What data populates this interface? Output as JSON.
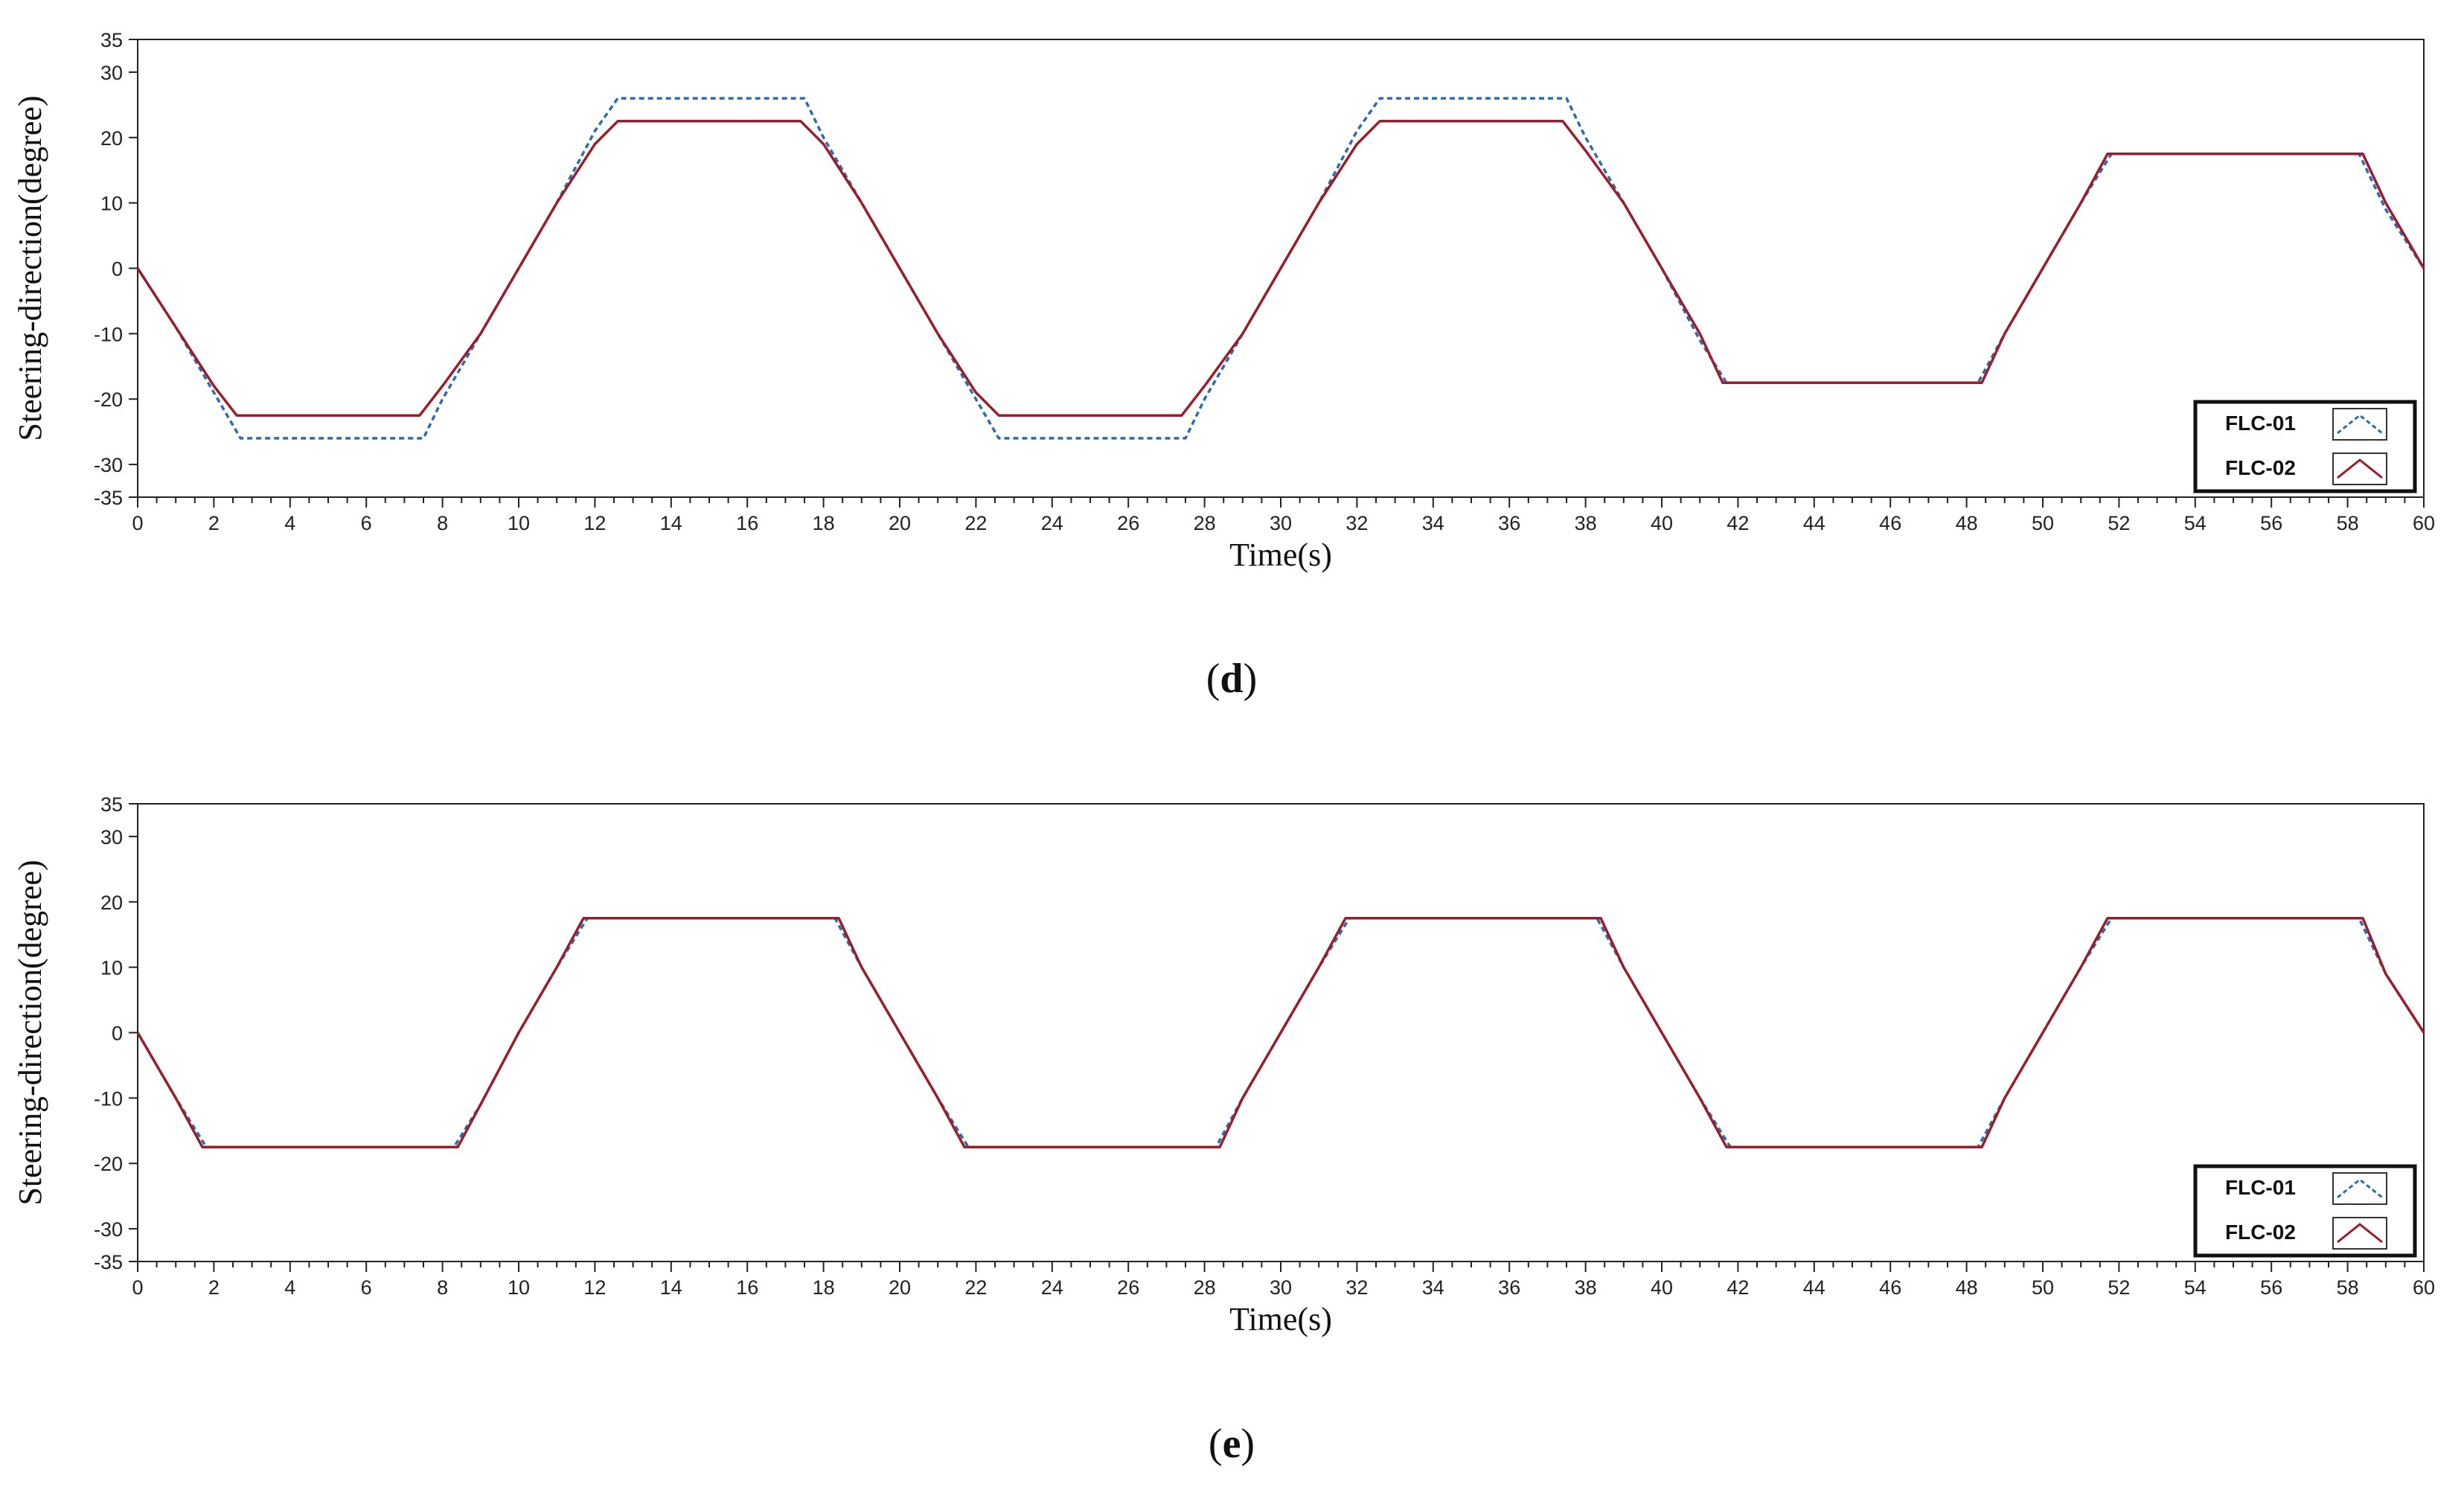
{
  "colors": {
    "flc01": "#2b6cb0",
    "flc02": "#9b1c2a",
    "axis": "#222222"
  },
  "chart_data": [
    {
      "type": "line",
      "panel_label": "d",
      "xlabel": "Time(s)",
      "ylabel": "Steering-direction(degree)",
      "xlim": [
        0,
        60
      ],
      "ylim": [
        -35,
        35
      ],
      "xticks": [
        0,
        2,
        4,
        6,
        8,
        10,
        12,
        14,
        16,
        18,
        20,
        22,
        24,
        26,
        28,
        30,
        32,
        34,
        36,
        38,
        40,
        42,
        44,
        46,
        48,
        50,
        52,
        54,
        56,
        58,
        60
      ],
      "yticks": [
        -35,
        -30,
        -20,
        -10,
        0,
        10,
        20,
        30,
        35
      ],
      "legend_position": "bottom-right",
      "series": [
        {
          "name": "FLC-01",
          "style": "dashed",
          "x": [
            0,
            1,
            2,
            2.7,
            7.5,
            8,
            9,
            10,
            11,
            12,
            12.6,
            17.5,
            18,
            19,
            20,
            21,
            22,
            22.6,
            27.5,
            28,
            29,
            30,
            31,
            32,
            32.6,
            37.5,
            38,
            39,
            40,
            41,
            41.7,
            48.3,
            49,
            50,
            51,
            51.8,
            58.3,
            59,
            60
          ],
          "y": [
            0,
            -9,
            -19,
            -26,
            -26,
            -20,
            -10,
            0,
            10,
            21,
            26,
            26,
            20,
            10,
            0,
            -10,
            -20,
            -26,
            -26,
            -20,
            -10,
            0,
            10,
            21,
            26,
            26,
            20,
            10,
            0,
            -11,
            -17.5,
            -17.5,
            -10,
            0,
            10,
            17.5,
            17.5,
            9,
            0
          ]
        },
        {
          "name": "FLC-02",
          "style": "solid",
          "x": [
            0,
            1,
            2,
            2.6,
            7.4,
            8,
            9,
            10,
            11,
            12,
            12.6,
            17.4,
            18,
            19,
            20,
            21,
            22,
            22.6,
            27.4,
            28,
            29,
            30,
            31,
            32,
            32.6,
            37.4,
            38,
            39,
            40,
            41,
            41.6,
            48.4,
            49,
            50,
            51,
            51.7,
            58.4,
            59,
            60
          ],
          "y": [
            0,
            -9,
            -18,
            -22.5,
            -22.5,
            -18,
            -10,
            0,
            10,
            19,
            22.5,
            22.5,
            19,
            10,
            0,
            -10,
            -19,
            -22.5,
            -22.5,
            -18,
            -10,
            0,
            10,
            19,
            22.5,
            22.5,
            18,
            10,
            0,
            -10,
            -17.5,
            -17.5,
            -10,
            0,
            10,
            17.5,
            17.5,
            10,
            0
          ]
        }
      ]
    },
    {
      "type": "line",
      "panel_label": "e",
      "xlabel": "Time(s)",
      "ylabel": "Steering-direction(degree)",
      "xlim": [
        0,
        60
      ],
      "ylim": [
        -35,
        35
      ],
      "xticks": [
        0,
        2,
        4,
        6,
        8,
        10,
        12,
        14,
        16,
        18,
        20,
        22,
        24,
        26,
        28,
        30,
        32,
        34,
        36,
        38,
        40,
        42,
        44,
        46,
        48,
        50,
        52,
        54,
        56,
        58,
        60
      ],
      "yticks": [
        -35,
        -30,
        -20,
        -10,
        0,
        10,
        20,
        30,
        35
      ],
      "legend_position": "bottom-right",
      "series": [
        {
          "name": "FLC-01",
          "style": "dashed",
          "x": [
            0,
            1,
            1.8,
            8.3,
            9,
            10,
            11,
            11.8,
            18.3,
            19,
            20,
            21,
            21.8,
            28.3,
            29,
            30,
            31,
            31.8,
            38.3,
            39,
            40,
            41,
            41.8,
            48.3,
            49,
            50,
            51,
            51.8,
            58.3,
            59,
            60
          ],
          "y": [
            0,
            -10,
            -17.5,
            -17.5,
            -11,
            0,
            10,
            17.5,
            17.5,
            10,
            0,
            -10,
            -17.5,
            -17.5,
            -10,
            0,
            10,
            17.5,
            17.5,
            10,
            0,
            -10,
            -17.5,
            -17.5,
            -10,
            0,
            10,
            17.5,
            17.5,
            9,
            0
          ]
        },
        {
          "name": "FLC-02",
          "style": "solid",
          "x": [
            0,
            1,
            1.7,
            8.4,
            9,
            10,
            11,
            11.7,
            18.4,
            19,
            20,
            21,
            21.7,
            28.4,
            29,
            30,
            31,
            31.7,
            38.4,
            39,
            40,
            41,
            41.7,
            48.4,
            49,
            50,
            51,
            51.7,
            58.4,
            59,
            60
          ],
          "y": [
            0,
            -10,
            -17.5,
            -17.5,
            -11,
            0,
            10,
            17.5,
            17.5,
            10,
            0,
            -10,
            -17.5,
            -17.5,
            -10,
            0,
            10,
            17.5,
            17.5,
            10,
            0,
            -10,
            -17.5,
            -17.5,
            -10,
            0,
            10,
            17.5,
            17.5,
            9,
            0
          ]
        }
      ]
    }
  ]
}
